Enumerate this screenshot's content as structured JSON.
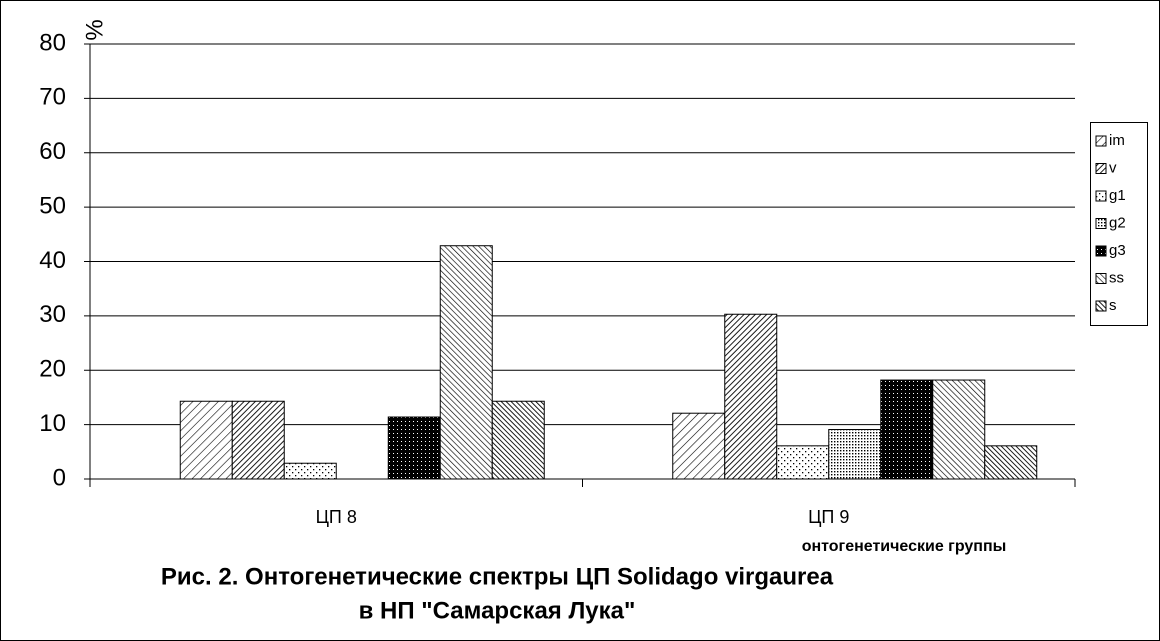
{
  "chart_data": {
    "type": "bar",
    "title": [
      "Рис. 2. Онтогенетические спектры ЦП Solidago virgaurea",
      "в НП \"Самарская Лука\""
    ],
    "x_label": "онтогенетические группы",
    "y_label": "%",
    "categories": [
      "ЦП 8",
      "ЦП 9"
    ],
    "series": [
      {
        "name": "im",
        "color": "#000000",
        "pattern": "diagonal-light",
        "values": [
          14.3,
          12.1
        ]
      },
      {
        "name": "v",
        "color": "#000000",
        "pattern": "diagonal-dense",
        "values": [
          14.3,
          30.3
        ]
      },
      {
        "name": "g1",
        "color": "#000000",
        "pattern": "dots-sparse",
        "values": [
          2.9,
          6.1
        ]
      },
      {
        "name": "g2",
        "color": "#000000",
        "pattern": "dots-dense",
        "values": [
          0,
          9.1
        ]
      },
      {
        "name": "g3",
        "color": "#000000",
        "pattern": "checker-dark",
        "values": [
          11.4,
          18.2
        ]
      },
      {
        "name": "ss",
        "color": "#000000",
        "pattern": "backdiagonal-light",
        "values": [
          42.9,
          18.2
        ]
      },
      {
        "name": "s",
        "color": "#000000",
        "pattern": "backdiagonal-dense",
        "values": [
          14.3,
          6.1
        ]
      }
    ],
    "ylim": [
      0,
      80
    ],
    "yticks": [
      0,
      10,
      20,
      30,
      40,
      50,
      60,
      70,
      80
    ],
    "grid": true,
    "legend": "right"
  }
}
